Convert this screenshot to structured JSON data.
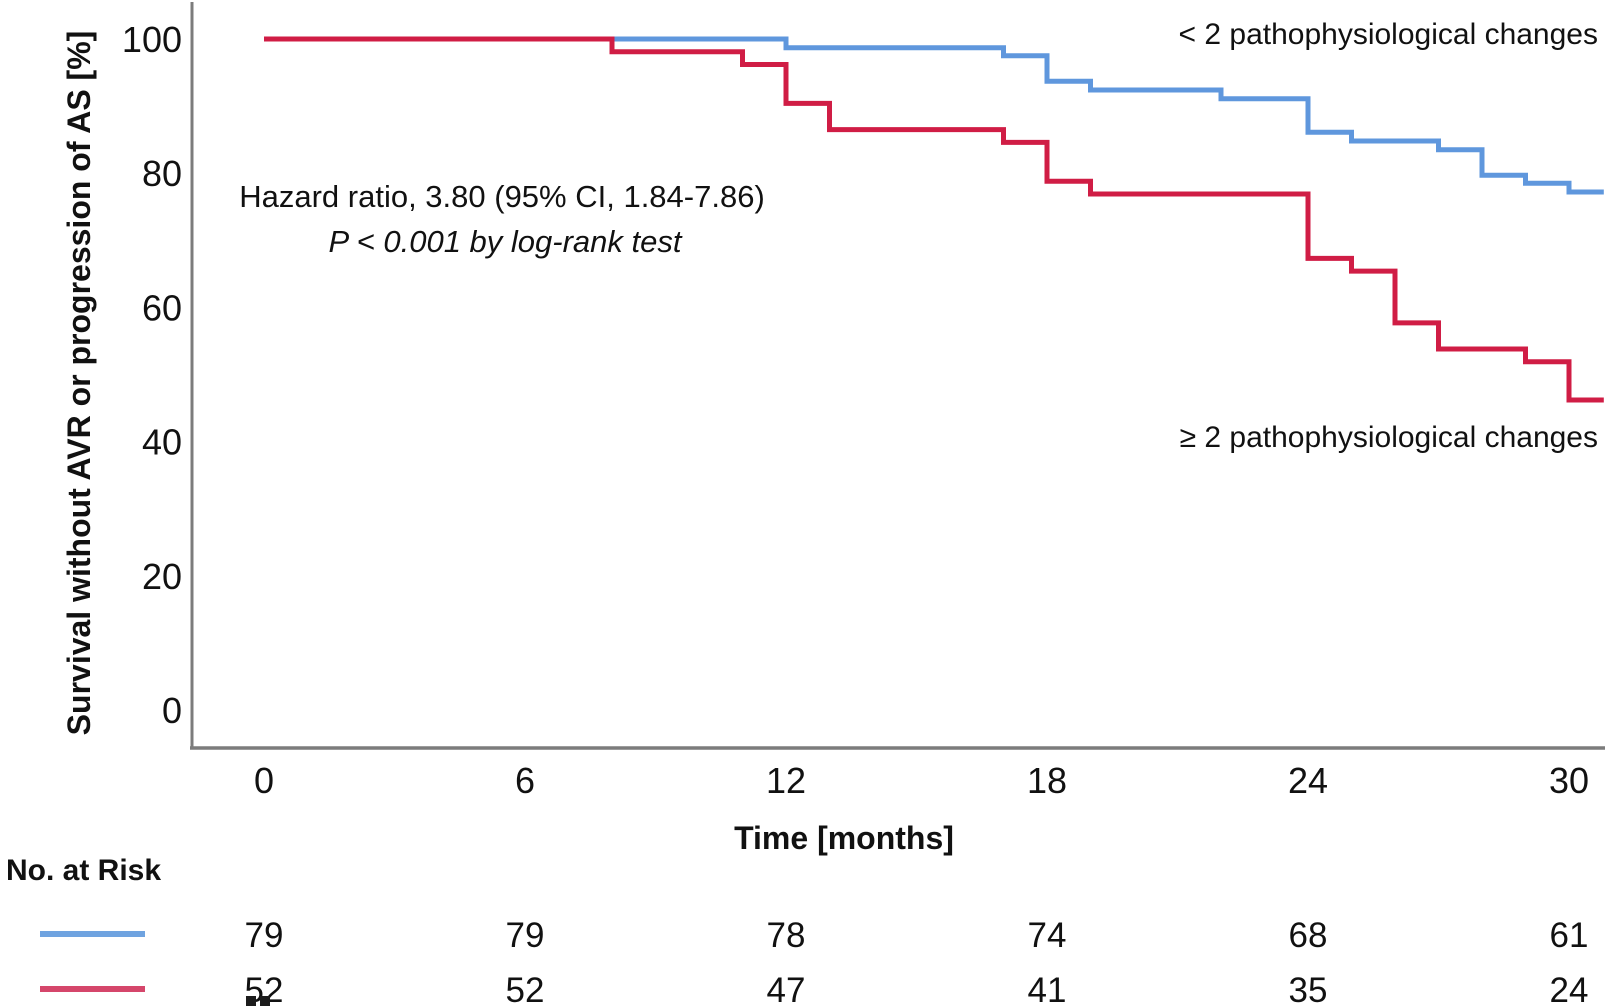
{
  "figure": {
    "background": "#ffffff",
    "axis_color": "#7c7c7c",
    "text_color": "#111111"
  },
  "chart_data": {
    "type": "line",
    "variant": "kaplan_meier_step_survival",
    "title": "",
    "xlabel": "Time [months]",
    "ylabel": "Survival without AVR or progression of AS [%]",
    "xlim": [
      0,
      30.8
    ],
    "ylim": [
      0,
      100
    ],
    "x_ticks": [
      0,
      6,
      12,
      18,
      24,
      30
    ],
    "y_ticks": [
      100,
      80,
      60,
      40,
      20,
      0
    ],
    "grid": false,
    "legend_position": "labels-inside-plot",
    "annotation": {
      "line1": "Hazard ratio, 3.80 (95% CI, 1.84-7.86)",
      "line2": "P < 0.001 by log-rank test"
    },
    "series": [
      {
        "name": "< 2 pathophysiological changes",
        "color": "#5f97dd",
        "t_end": 30.8,
        "steps": [
          {
            "t": 0,
            "s": 100
          },
          {
            "t": 12,
            "s": 98.7
          },
          {
            "t": 17,
            "s": 97.5
          },
          {
            "t": 18,
            "s": 93.7
          },
          {
            "t": 19,
            "s": 92.4
          },
          {
            "t": 22,
            "s": 91.1
          },
          {
            "t": 24,
            "s": 86.1
          },
          {
            "t": 25,
            "s": 84.8
          },
          {
            "t": 27,
            "s": 83.5
          },
          {
            "t": 28,
            "s": 79.7
          },
          {
            "t": 29,
            "s": 78.5
          },
          {
            "t": 30,
            "s": 77.2
          }
        ]
      },
      {
        "name": "≥ 2 pathophysiological changes",
        "color": "#d01d45",
        "t_end": 30.8,
        "steps": [
          {
            "t": 0,
            "s": 100
          },
          {
            "t": 8,
            "s": 98.1
          },
          {
            "t": 11,
            "s": 96.2
          },
          {
            "t": 12,
            "s": 90.4
          },
          {
            "t": 13,
            "s": 86.5
          },
          {
            "t": 17,
            "s": 84.6
          },
          {
            "t": 18,
            "s": 78.8
          },
          {
            "t": 19,
            "s": 76.9
          },
          {
            "t": 24,
            "s": 67.3
          },
          {
            "t": 25,
            "s": 65.4
          },
          {
            "t": 26,
            "s": 57.7
          },
          {
            "t": 27,
            "s": 53.8
          },
          {
            "t": 29,
            "s": 51.9
          },
          {
            "t": 30,
            "s": 46.2
          }
        ]
      }
    ],
    "risk_table": {
      "label": "No. at Risk",
      "times": [
        0,
        6,
        12,
        18,
        24,
        30
      ],
      "rows": [
        {
          "series": "< 2 pathophysiological changes",
          "color": "#6fa3e0",
          "counts": [
            79,
            79,
            78,
            74,
            68,
            61
          ]
        },
        {
          "series": "≥ 2 pathophysiological changes",
          "color": "#d5466b",
          "counts": [
            52,
            52,
            47,
            41,
            35,
            24
          ]
        }
      ]
    }
  }
}
